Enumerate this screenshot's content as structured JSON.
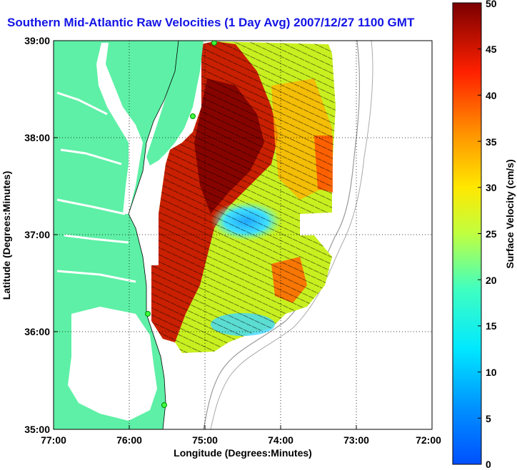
{
  "title": "Southern Mid-Atlantic Raw Velocities (1 Day Avg) 2007/12/27 1100 GMT",
  "x_axis": {
    "label": "Longitude (Degrees:Minutes)",
    "ticks": [
      "77:00",
      "76:00",
      "75:00",
      "74:00",
      "73:00",
      "72:00"
    ]
  },
  "y_axis": {
    "label": "Latitude (Degrees:Minutes)",
    "ticks": [
      "39:00",
      "38:00",
      "37:00",
      "36:00",
      "35:00"
    ]
  },
  "colorbar": {
    "label": "Surface Velocity (cm/s)",
    "ticks": [
      "50",
      "45",
      "40",
      "35",
      "30",
      "25",
      "20",
      "15",
      "10",
      "5",
      "0"
    ],
    "min": 0,
    "max": 50
  },
  "map": {
    "lon_range": [
      -77,
      -72
    ],
    "lat_range": [
      35,
      39
    ],
    "land_color": "#5ef0a6",
    "gridlines": "dotted"
  }
}
